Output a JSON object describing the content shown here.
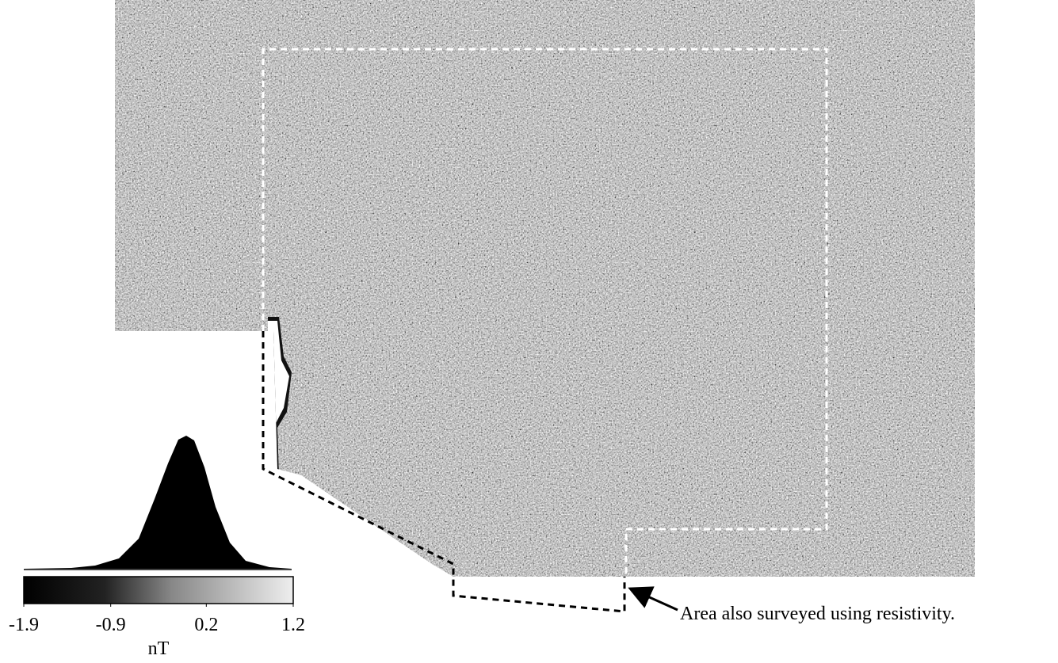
{
  "colorbar": {
    "unit": "nT",
    "range": [
      -1.9,
      1.2
    ],
    "ticks": [
      -1.9,
      -0.9,
      0.2,
      1.2
    ]
  },
  "annotation": "Area also surveyed using resistivity."
}
